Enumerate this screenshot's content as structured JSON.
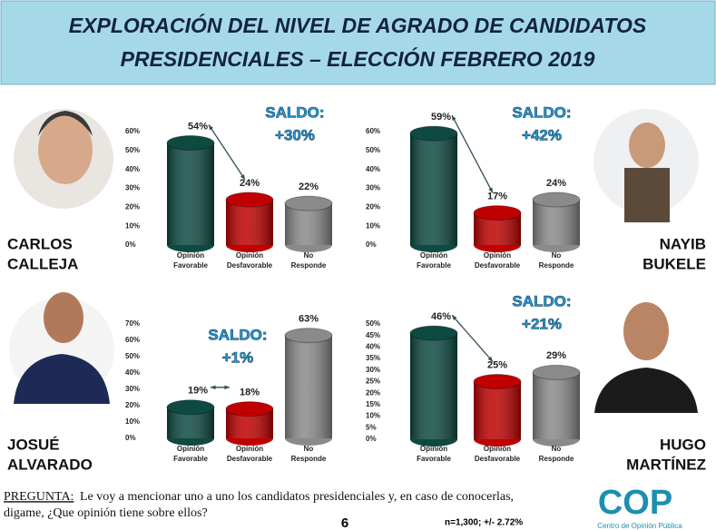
{
  "header": {
    "title": [
      "EXPLORACIÓN DEL NIVEL DE AGRADO DE CANDIDATOS",
      "PRESIDENCIALES – ELECCIÓN FEBRERO 2019"
    ]
  },
  "candidates": [
    [
      "CARLOS",
      "CALLEJA"
    ],
    [
      "NAYIB",
      "BUKELE"
    ],
    [
      "JOSUÉ",
      "ALVARADO"
    ],
    [
      "HUGO",
      "MARTÍNEZ"
    ]
  ],
  "chart_data": [
    {
      "type": "bar",
      "categories": [
        "Opinión Favorable",
        "Opinión Desfavorable",
        "No Responde"
      ],
      "values": [
        54,
        24,
        22
      ],
      "value_labels": [
        "54%",
        "24%",
        "22%"
      ],
      "colors": [
        "#0e4a41",
        "#c00000",
        "#8a8a8a"
      ],
      "ylim": [
        0,
        60
      ],
      "yticks": [
        {
          "value": 0,
          "label": "0%"
        },
        {
          "value": 10,
          "label": "10%"
        },
        {
          "value": 20,
          "label": "20%"
        },
        {
          "value": 30,
          "label": "30%"
        },
        {
          "value": 40,
          "label": "40%"
        },
        {
          "value": 50,
          "label": "50%"
        },
        {
          "value": 60,
          "label": "60%"
        }
      ],
      "annotation": [
        "SALDO:",
        "+30%"
      ]
    },
    {
      "type": "bar",
      "categories": [
        "Opinión Favorable",
        "Opinión Desfavorable",
        "No Responde"
      ],
      "values": [
        59,
        17,
        24
      ],
      "value_labels": [
        "59%",
        "17%",
        "24%"
      ],
      "colors": [
        "#0e4a41",
        "#c00000",
        "#8a8a8a"
      ],
      "ylim": [
        0,
        60
      ],
      "yticks": [
        {
          "value": 0,
          "label": "0%"
        },
        {
          "value": 10,
          "label": "10%"
        },
        {
          "value": 20,
          "label": "20%"
        },
        {
          "value": 30,
          "label": "30%"
        },
        {
          "value": 40,
          "label": "40%"
        },
        {
          "value": 50,
          "label": "50%"
        },
        {
          "value": 60,
          "label": "60%"
        }
      ],
      "annotation": [
        "SALDO:",
        "+42%"
      ]
    },
    {
      "type": "bar",
      "categories": [
        "Opinión Favorable",
        "Opinión Desfavorable",
        "No Responde"
      ],
      "values": [
        19,
        18,
        63
      ],
      "value_labels": [
        "19%",
        "18%",
        "63%"
      ],
      "colors": [
        "#0e4a41",
        "#c00000",
        "#8a8a8a"
      ],
      "ylim": [
        0,
        70
      ],
      "yticks": [
        {
          "value": 0,
          "label": "0%"
        },
        {
          "value": 10,
          "label": "10%"
        },
        {
          "value": 20,
          "label": "20%"
        },
        {
          "value": 30,
          "label": "30%"
        },
        {
          "value": 40,
          "label": "40%"
        },
        {
          "value": 50,
          "label": "50%"
        },
        {
          "value": 60,
          "label": "60%"
        },
        {
          "value": 70,
          "label": "70%"
        }
      ],
      "annotation": [
        "SALDO:",
        "+1%"
      ]
    },
    {
      "type": "bar",
      "categories": [
        "Opinión Favorable",
        "Opinión Desfavorable",
        "No Responde"
      ],
      "values": [
        46,
        25,
        29
      ],
      "value_labels": [
        "46%",
        "25%",
        "29%"
      ],
      "colors": [
        "#0e4a41",
        "#c00000",
        "#8a8a8a"
      ],
      "ylim": [
        0,
        50
      ],
      "yticks": [
        {
          "value": 0,
          "label": "0%"
        },
        {
          "value": 5,
          "label": "5%"
        },
        {
          "value": 10,
          "label": "10%"
        },
        {
          "value": 15,
          "label": "15%"
        },
        {
          "value": 20,
          "label": "20%"
        },
        {
          "value": 25,
          "label": "25%"
        },
        {
          "value": 30,
          "label": "30%"
        },
        {
          "value": 35,
          "label": "35%"
        },
        {
          "value": 40,
          "label": "40%"
        },
        {
          "value": 45,
          "label": "45%"
        },
        {
          "value": 50,
          "label": "50%"
        }
      ],
      "annotation": [
        "SALDO:",
        "+21%"
      ]
    }
  ],
  "footer": {
    "question_label": "PREGUNTA:",
    "question": [
      "Le voy a mencionar uno a uno los candidatos presidenciales y, en caso de conocerlas,",
      "digame, ¿Que opinión tiene sobre ellos?"
    ],
    "page": "6",
    "note": "n=1,300; +/- 2.72%",
    "logo": "COP",
    "logo_caption": "Centro de Opinión Pública"
  }
}
